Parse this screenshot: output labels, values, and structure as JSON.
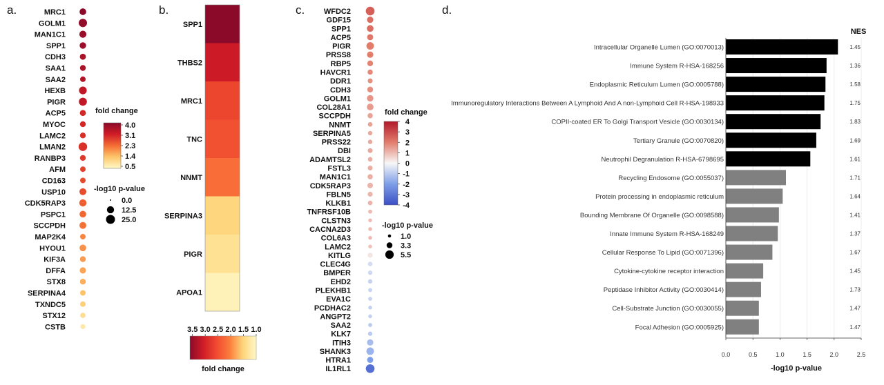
{
  "figure": {
    "panel_labels": [
      "a.",
      "b.",
      "c.",
      "d."
    ]
  },
  "chart_data": [
    {
      "panel": "a.",
      "type": "scatter",
      "genes": [
        "MRC1",
        "GOLM1",
        "MAN1C1",
        "SPP1",
        "CDH3",
        "SAA1",
        "SAA2",
        "HEXB",
        "PIGR",
        "ACP5",
        "MYOC",
        "LAMC2",
        "LMAN2",
        "RANBP3",
        "AFM",
        "CD163",
        "USP10",
        "CDK5RAP3",
        "PSPC1",
        "SCCPDH",
        "MAP2K4",
        "HYOU1",
        "KIF3A",
        "DFFA",
        "STX8",
        "SERPINA4",
        "TXNDC5",
        "STX12",
        "CSTB"
      ],
      "fold_change": [
        4.0,
        3.9,
        3.8,
        3.8,
        3.6,
        3.6,
        3.5,
        3.3,
        3.3,
        3.0,
        3.0,
        2.9,
        2.9,
        2.8,
        2.7,
        2.6,
        2.6,
        2.4,
        2.3,
        2.2,
        2.0,
        1.9,
        1.8,
        1.7,
        1.6,
        1.4,
        1.2,
        1.0,
        0.8
      ],
      "neg_log10_p": [
        10,
        20,
        12,
        9,
        7,
        6,
        5,
        16,
        18,
        7,
        6,
        6,
        22,
        6,
        5,
        5,
        11,
        13,
        10,
        11,
        5,
        10,
        6,
        8,
        6,
        5,
        5,
        4,
        3
      ],
      "color_legend": {
        "title": "fold change",
        "ticks": [
          "4.0",
          "3.1",
          "2.3",
          "1.4",
          "0.5"
        ],
        "colors": [
          "#8b0a2a",
          "#cf1c26",
          "#f46d34",
          "#fdc66a",
          "#fff9c8"
        ]
      },
      "size_legend": {
        "title": "-log10 p-value",
        "ticks": [
          "0.0",
          "12.5",
          "25.0"
        ]
      }
    },
    {
      "panel": "b.",
      "type": "heatmap",
      "rows": [
        "SPP1",
        "THBS2",
        "MRC1",
        "TNC",
        "NNMT",
        "SERPINA3",
        "PIGR",
        "APOA1"
      ],
      "fold_change": [
        3.6,
        3.1,
        2.6,
        2.5,
        2.2,
        1.5,
        1.35,
        1.1
      ],
      "colorbar": {
        "title": "fold change",
        "ticks": [
          "3.5",
          "3.0",
          "2.5",
          "2.0",
          "1.5",
          "1.0"
        ],
        "range": [
          3.6,
          1.0
        ],
        "colors": [
          "#8b0a2a",
          "#cf1c26",
          "#f04a30",
          "#fb7d3c",
          "#fdd57a",
          "#fff9c8"
        ]
      }
    },
    {
      "panel": "c.",
      "type": "scatter",
      "genes": [
        "WFDC2",
        "GDF15",
        "SPP1",
        "ACP5",
        "PIGR",
        "PRSS8",
        "RBP5",
        "HAVCR1",
        "DDR1",
        "CDH3",
        "GOLM1",
        "COL28A1",
        "SCCPDH",
        "NNMT",
        "SERPINA5",
        "PRSS22",
        "DBI",
        "ADAMTSL2",
        "FSTL3",
        "MAN1C1",
        "CDK5RAP3",
        "FBLN5",
        "KLKB1",
        "TNFRSF10B",
        "CLSTN3",
        "CACNA2D3",
        "COL6A3",
        "LAMC2",
        "KITLG",
        "CLEC4G",
        "BMPER",
        "EHD2",
        "PLEKHB1",
        "EVA1C",
        "PCDHAC2",
        "ANGPT2",
        "SAA2",
        "KLK7",
        "ITIH3",
        "SHANK3",
        "HTRA1",
        "IL1RL1"
      ],
      "fold_change": [
        2.6,
        2.3,
        2.3,
        2.1,
        2.0,
        2.0,
        1.9,
        1.8,
        1.7,
        1.7,
        1.6,
        1.5,
        1.4,
        1.4,
        1.3,
        1.3,
        1.3,
        1.2,
        1.2,
        1.2,
        1.1,
        1.1,
        1.1,
        1.0,
        1.0,
        1.0,
        1.0,
        0.9,
        0.3,
        -0.6,
        -0.7,
        -0.8,
        -0.8,
        -0.8,
        -0.9,
        -0.9,
        -1.0,
        -1.0,
        -1.3,
        -1.5,
        -2.0,
        -3.2
      ],
      "neg_log10_p": [
        5.5,
        3.5,
        3.8,
        3.3,
        4.5,
        3.5,
        3.0,
        2.5,
        2.2,
        3.0,
        3.6,
        3.8,
        2.5,
        2.0,
        1.8,
        1.8,
        2.2,
        2.0,
        2.2,
        2.5,
        2.8,
        2.3,
        2.0,
        1.5,
        1.3,
        1.3,
        1.3,
        1.3,
        2.3,
        2.0,
        1.8,
        1.8,
        1.5,
        1.5,
        1.3,
        1.3,
        1.5,
        1.8,
        3.5,
        4.5,
        3.3,
        5.5
      ],
      "color_legend": {
        "title": "fold change",
        "ticks": [
          "4",
          "3",
          "2",
          "1",
          "0",
          "-1",
          "-2",
          "-3",
          "-4"
        ],
        "range": [
          4,
          -4
        ],
        "colors": [
          "#b2182b",
          "#e27d6c",
          "#f7f7f7",
          "#7e9ee8",
          "#3b4fc4"
        ]
      },
      "size_legend": {
        "title": "-log10 p-value",
        "ticks": [
          "1.0",
          "3.3",
          "5.5"
        ]
      }
    },
    {
      "panel": "d.",
      "type": "bar",
      "orientation": "horizontal",
      "categories": [
        "Intracellular Organelle Lumen (GO:0070013)",
        "Immune System R-HSA-168256",
        "Endoplasmic Reticulum Lumen (GO:0005788)",
        "Immunoregulatory Interactions Between A Lymphoid And A non-Lymphoid Cell R-HSA-198933",
        "COPII-coated ER To Golgi Transport Vesicle (GO:0030134)",
        "Tertiary Granule (GO:0070820)",
        "Neutrophil Degranulation R-HSA-6798695",
        "Recycling Endosome (GO:0055037)",
        "Protein processing in endoplasmic reticulum",
        "Bounding Membrane Of Organelle (GO:0098588)",
        "Innate Immune System R-HSA-168249",
        "Cellular Response To Lipid (GO:0071396)",
        "Cytokine-cytokine receptor interaction",
        "Peptidase Inhibitor Activity (GO:0030414)",
        "Cell-Substrate Junction (GO:0030055)",
        "Focal Adhesion (GO:0005925)"
      ],
      "values": [
        2.07,
        1.86,
        1.84,
        1.82,
        1.75,
        1.67,
        1.56,
        1.11,
        1.05,
        0.98,
        0.96,
        0.86,
        0.69,
        0.65,
        0.61,
        0.61
      ],
      "nes": [
        "1.45",
        "1.36",
        "1.58",
        "1.75",
        "1.83",
        "1.69",
        "1.61",
        "1.71",
        "1.64",
        "1.41",
        "1.37",
        "1.67",
        "1.45",
        "1.73",
        "1.47",
        "1.47"
      ],
      "colors": {
        "significant": "#000000",
        "other": "#808080"
      },
      "significant_count": 7,
      "nes_title": "NES",
      "xlabel": "-log10 p-value",
      "xlim": [
        0,
        2.5
      ],
      "xticks": [
        "0.0",
        "0.5",
        "1.0",
        "1.5",
        "2.0",
        "2.5"
      ]
    }
  ]
}
